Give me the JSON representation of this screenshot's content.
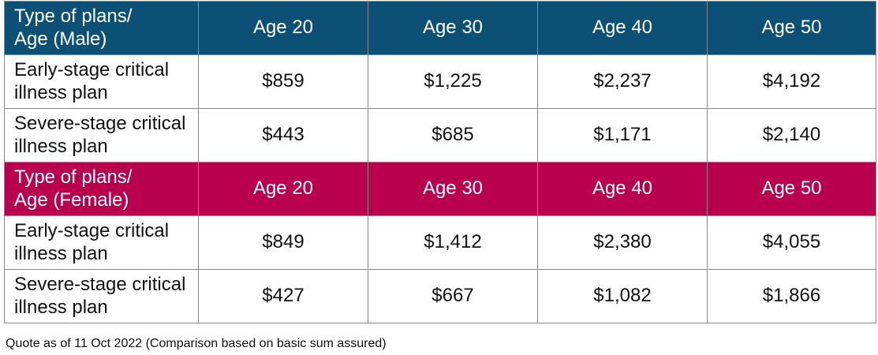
{
  "male": {
    "header": {
      "label_line1": "Type of plans/",
      "label_line2": "Age (Male)",
      "ages": [
        "Age 20",
        "Age 30",
        "Age 40",
        "Age 50"
      ]
    },
    "rows": [
      {
        "label_line1": "Early-stage critical",
        "label_line2": "illness plan",
        "values": [
          "$859",
          "$1,225",
          "$2,237",
          "$4,192"
        ]
      },
      {
        "label_line1": "Severe-stage critical",
        "label_line2": "illness plan",
        "values": [
          "$443",
          "$685",
          "$1,171",
          "$2,140"
        ]
      }
    ]
  },
  "female": {
    "header": {
      "label_line1": "Type of plans/",
      "label_line2": "Age (Female)",
      "ages": [
        "Age 20",
        "Age 30",
        "Age 40",
        "Age 50"
      ]
    },
    "rows": [
      {
        "label_line1": "Early-stage critical",
        "label_line2": "illness plan",
        "values": [
          "$849",
          "$1,412",
          "$2,380",
          "$4,055"
        ]
      },
      {
        "label_line1": "Severe-stage critical",
        "label_line2": "illness plan",
        "values": [
          "$427",
          "$667",
          "$1,082",
          "$1,866"
        ]
      }
    ]
  },
  "colors": {
    "male_header_bg": "#0c5076",
    "female_header_bg": "#b8004f",
    "header_text": "#ffffff",
    "border": "#8a8a8a"
  },
  "footnote": "Quote as of 11 Oct 2022 (Comparison based on basic sum assured)"
}
